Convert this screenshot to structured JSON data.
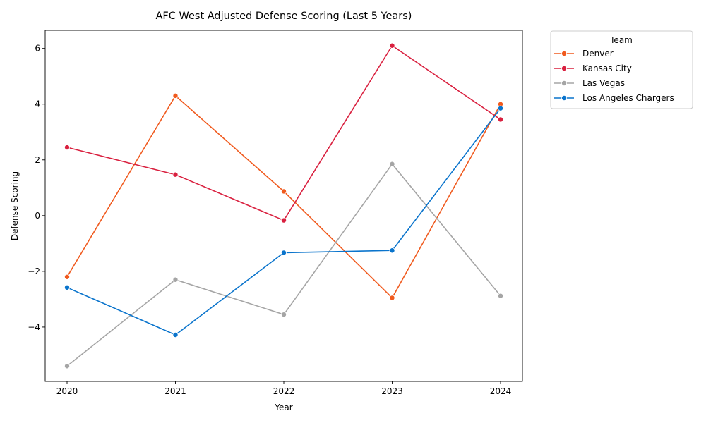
{
  "chart_data": {
    "type": "line",
    "title": "AFC West Adjusted Defense Scoring (Last 5 Years)",
    "xlabel": "Year",
    "ylabel": "Defense Scoring",
    "x": [
      "2020",
      "2021",
      "2022",
      "2023",
      "2024"
    ],
    "ylim": [
      -5.95,
      6.65
    ],
    "yticks": [
      -4,
      -2,
      0,
      2,
      4,
      6
    ],
    "yticklabels": [
      "−4",
      "−2",
      "0",
      "2",
      "4",
      "6"
    ],
    "grid": false,
    "legend": {
      "title": "Team",
      "placement": "outside-top-right"
    },
    "series": [
      {
        "name": "Denver",
        "color": "#f05a1e",
        "values": [
          -2.2,
          4.3,
          0.87,
          -2.95,
          4.0
        ]
      },
      {
        "name": "Kansas City",
        "color": "#d9203f",
        "values": [
          2.45,
          1.47,
          -0.17,
          6.1,
          3.45
        ]
      },
      {
        "name": "Las Vegas",
        "color": "#a5a5a5",
        "values": [
          -5.4,
          -2.3,
          -3.55,
          1.85,
          -2.88
        ]
      },
      {
        "name": "Los Angeles Chargers",
        "color": "#0a74cc",
        "values": [
          -2.58,
          -4.28,
          -1.33,
          -1.25,
          3.85
        ]
      }
    ]
  }
}
